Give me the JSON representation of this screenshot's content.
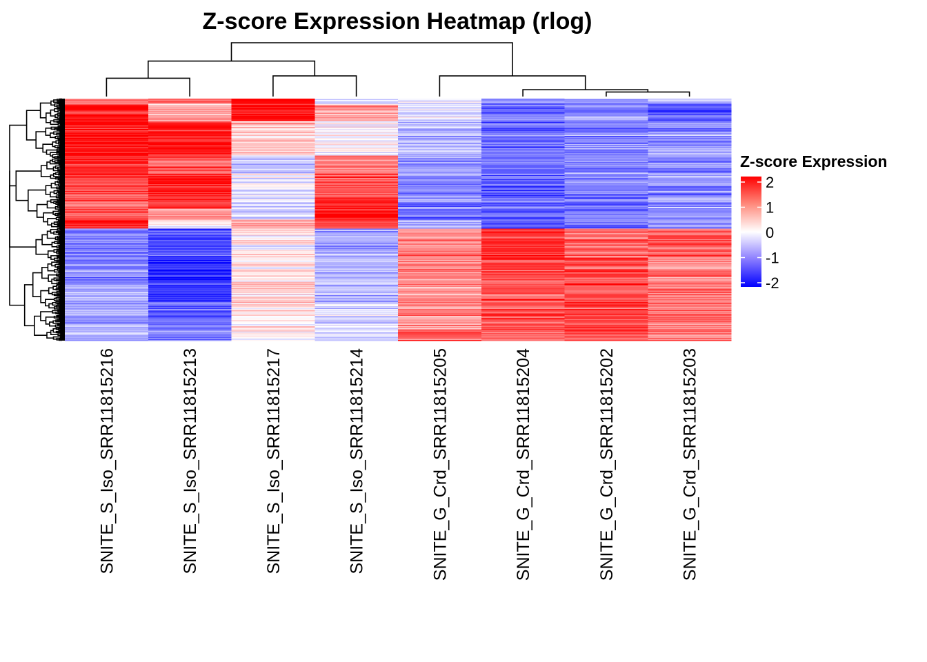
{
  "chart_data": {
    "type": "heatmap",
    "title": "Z-score Expression Heatmap (rlog)",
    "columns": [
      "SNITE_S_Iso_SRR11815216",
      "SNITE_S_Iso_SRR11815213",
      "SNITE_S_Iso_SRR11815217",
      "SNITE_S_Iso_SRR11815214",
      "SNITE_G_Crd_SRR11815205",
      "SNITE_G_Crd_SRR11815204",
      "SNITE_G_Crd_SRR11815202",
      "SNITE_G_Crd_SRR11815203"
    ],
    "row_count": 320,
    "row_blocks": [
      {
        "rows": [
          0,
          7
        ],
        "values": [
          0.8,
          1.2,
          1.9,
          -0.4,
          -0.3,
          -0.9,
          -0.9,
          -0.8
        ]
      },
      {
        "rows": [
          7,
          30
        ],
        "values": [
          1.8,
          0.6,
          1.8,
          0.7,
          -0.2,
          -1.1,
          -0.9,
          -1.5
        ]
      },
      {
        "rows": [
          30,
          75
        ],
        "values": [
          1.9,
          1.8,
          0.4,
          -0.1,
          -0.6,
          -1.2,
          -1.0,
          -0.9
        ]
      },
      {
        "rows": [
          75,
          100
        ],
        "values": [
          1.8,
          1.4,
          -0.4,
          1.1,
          -0.8,
          -1.0,
          -0.9,
          -0.8
        ]
      },
      {
        "rows": [
          100,
          130
        ],
        "values": [
          1.4,
          1.9,
          -0.2,
          1.3,
          -0.9,
          -1.2,
          -1.0,
          -0.9
        ]
      },
      {
        "rows": [
          130,
          145
        ],
        "values": [
          1.3,
          1.7,
          -0.2,
          1.7,
          -1.0,
          -1.2,
          -1.1,
          -0.8
        ]
      },
      {
        "rows": [
          145,
          160
        ],
        "values": [
          1.4,
          0.9,
          -0.3,
          1.8,
          -1.0,
          -1.2,
          -1.1,
          -0.9
        ]
      },
      {
        "rows": [
          160,
          172
        ],
        "values": [
          1.9,
          0.1,
          0.7,
          1.6,
          -0.7,
          -1.2,
          -1.2,
          -0.9
        ]
      },
      {
        "rows": [
          172,
          210
        ],
        "values": [
          -0.9,
          -1.3,
          0.1,
          -0.7,
          1.0,
          1.6,
          1.2,
          1.3
        ]
      },
      {
        "rows": [
          210,
          240
        ],
        "values": [
          -0.8,
          -1.6,
          0.2,
          -0.6,
          0.9,
          1.5,
          1.4,
          1.0
        ]
      },
      {
        "rows": [
          240,
          270
        ],
        "values": [
          -0.7,
          -1.6,
          0.3,
          -0.6,
          0.8,
          1.3,
          1.4,
          1.0
        ]
      },
      {
        "rows": [
          270,
          305
        ],
        "values": [
          -0.8,
          -1.2,
          0.1,
          -0.4,
          0.9,
          1.3,
          1.4,
          1.1
        ]
      },
      {
        "rows": [
          305,
          320
        ],
        "values": [
          -0.7,
          -1.0,
          0.0,
          -0.3,
          1.3,
          1.2,
          1.4,
          1.0
        ]
      }
    ],
    "color_scale": {
      "min": -2,
      "mid": 0,
      "max": 2,
      "low": "#0000ff",
      "midColor": "#ffffff",
      "high": "#ff0000"
    },
    "legend": {
      "title": "Z-score Expression",
      "ticks": [
        "2",
        "1",
        "0",
        "-1",
        "-2"
      ],
      "tick_values": [
        2,
        1,
        0,
        -1,
        -2
      ],
      "placement": "right"
    },
    "column_dendrogram": {
      "merges": [
        [
          0,
          1
        ],
        [
          2,
          3
        ],
        [
          -1,
          -2
        ],
        [
          6,
          7
        ],
        [
          5,
          -4
        ],
        [
          4,
          -5
        ],
        [
          -3,
          -6
        ]
      ],
      "heights": [
        0.16,
        0.18,
        0.31,
        0.04,
        0.06,
        0.18,
        0.47
      ]
    },
    "row_dendrogram": {
      "clusters": 2,
      "split_fraction": 0.672
    }
  }
}
